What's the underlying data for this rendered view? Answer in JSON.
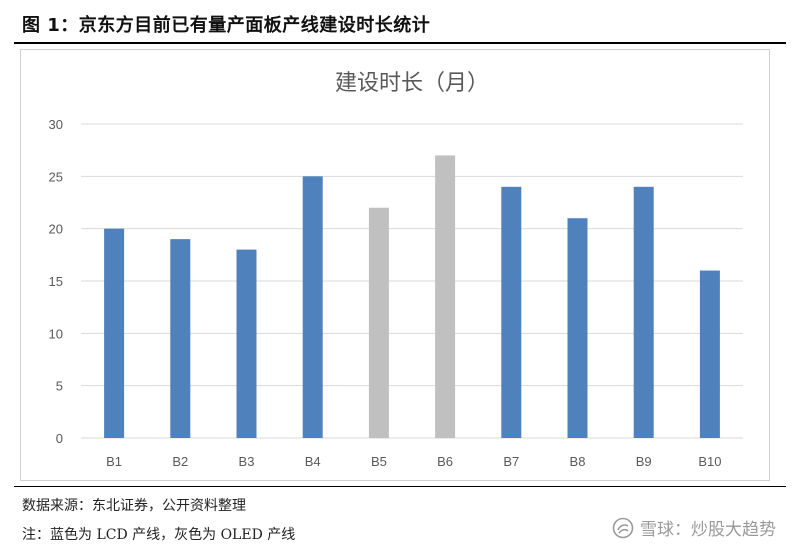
{
  "figure": {
    "title": "图 1：京东方目前已有量产面板产线建设时长统计",
    "source": "数据来源：东北证券，公开资料整理",
    "note": "注：蓝色为 LCD 产线，灰色为 OLED 产线"
  },
  "watermark": {
    "text": "雪球：炒股大趋势",
    "icon": "snowball-logo-icon"
  },
  "colors": {
    "lcd": "#4f81bd",
    "oled": "#c0c0c0",
    "grid": "#d9d9d9",
    "text": "#595959"
  },
  "chart_data": {
    "type": "bar",
    "title": "建设时长（月）",
    "xlabel": "",
    "ylabel": "",
    "categories": [
      "B1",
      "B2",
      "B3",
      "B4",
      "B5",
      "B6",
      "B7",
      "B8",
      "B9",
      "B10"
    ],
    "values": [
      20,
      19,
      18,
      25,
      22,
      27,
      24,
      21,
      24,
      16
    ],
    "bar_types": [
      "LCD",
      "LCD",
      "LCD",
      "LCD",
      "OLED",
      "OLED",
      "LCD",
      "LCD",
      "LCD",
      "LCD"
    ],
    "ylim": [
      0,
      30
    ],
    "yticks": [
      0,
      5,
      10,
      15,
      20,
      25,
      30
    ],
    "grid": true,
    "legend": "none"
  }
}
